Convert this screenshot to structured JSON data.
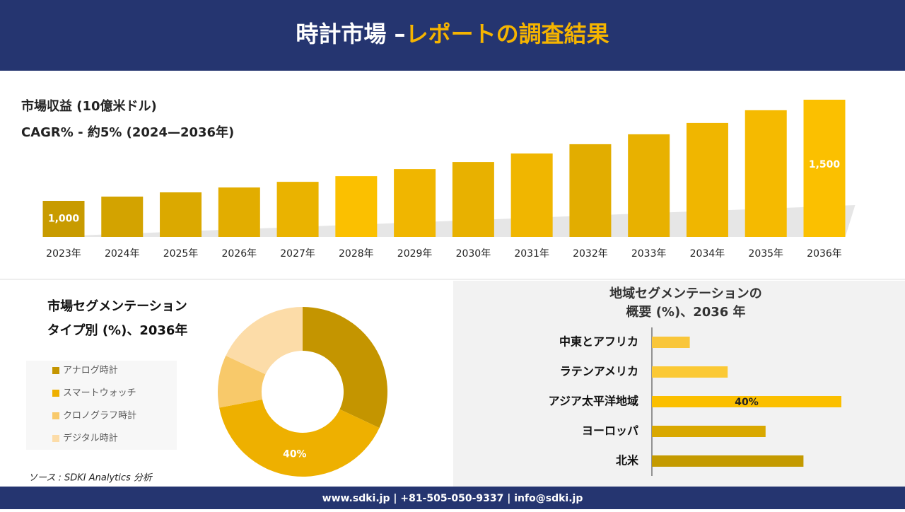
{
  "header": {
    "title_white": "時計市場 –",
    "title_accent": "レポートの調査結果"
  },
  "chart_data": [
    {
      "type": "bar",
      "title": "市場収益 (10億米ドル)",
      "subtitle": "CAGR%  - 約5% (2024—2036年)",
      "categories": [
        "2023年",
        "2024年",
        "2025年",
        "2026年",
        "2027年",
        "2028年",
        "2029年",
        "2030年",
        "2031年",
        "2032年",
        "2033年",
        "2034年",
        "2035年",
        "2036年"
      ],
      "values": [
        1000,
        1021,
        1042,
        1066,
        1094,
        1122,
        1157,
        1192,
        1234,
        1280,
        1329,
        1385,
        1448,
        1500
      ],
      "value_labels": [
        "1,000",
        null,
        null,
        null,
        null,
        null,
        null,
        null,
        null,
        null,
        null,
        null,
        null,
        "1,500"
      ],
      "colors": [
        "#c89b00",
        "#d3a300",
        "#dba900",
        "#e2ad00",
        "#eab300",
        "#fbc000",
        "#f0b600",
        "#e8b100",
        "#f0b600",
        "#e2ad00",
        "#e8b100",
        "#f0b600",
        "#f5ba00",
        "#fbc000"
      ]
    },
    {
      "type": "donut",
      "title": "市場セグメンテーション",
      "subtitle": "タイプ別 (%)、2036年",
      "categories": [
        "アナログ時計",
        "スマートウォッチ",
        "クロノグラフ時計",
        "デジタル時計"
      ],
      "values": [
        32,
        40,
        10,
        18
      ],
      "value_labels": [
        null,
        "40%",
        null,
        null
      ],
      "colors": [
        "#c49500",
        "#eeb000",
        "#f8c96a",
        "#fcdca8"
      ]
    },
    {
      "type": "bar",
      "orientation": "horizontal",
      "title": "地域セグメンテーションの",
      "subtitle": "概要 (%)、2036 年",
      "categories": [
        "中東とアフリカ",
        "ラテンアメリカ",
        "アジア太平洋地域",
        "ヨーロッパ",
        "北米"
      ],
      "values": [
        8,
        16,
        40,
        24,
        32
      ],
      "value_labels": [
        null,
        null,
        "40%",
        null,
        null
      ],
      "colors": [
        "#f9c63a",
        "#fbc935",
        "#fbbf00",
        "#d9a800",
        "#c49a00"
      ]
    }
  ],
  "source": "ソース : SDKI Analytics 分析",
  "footer": "www.sdki.jp | +81-505-050-9337 | info@sdki.jp"
}
